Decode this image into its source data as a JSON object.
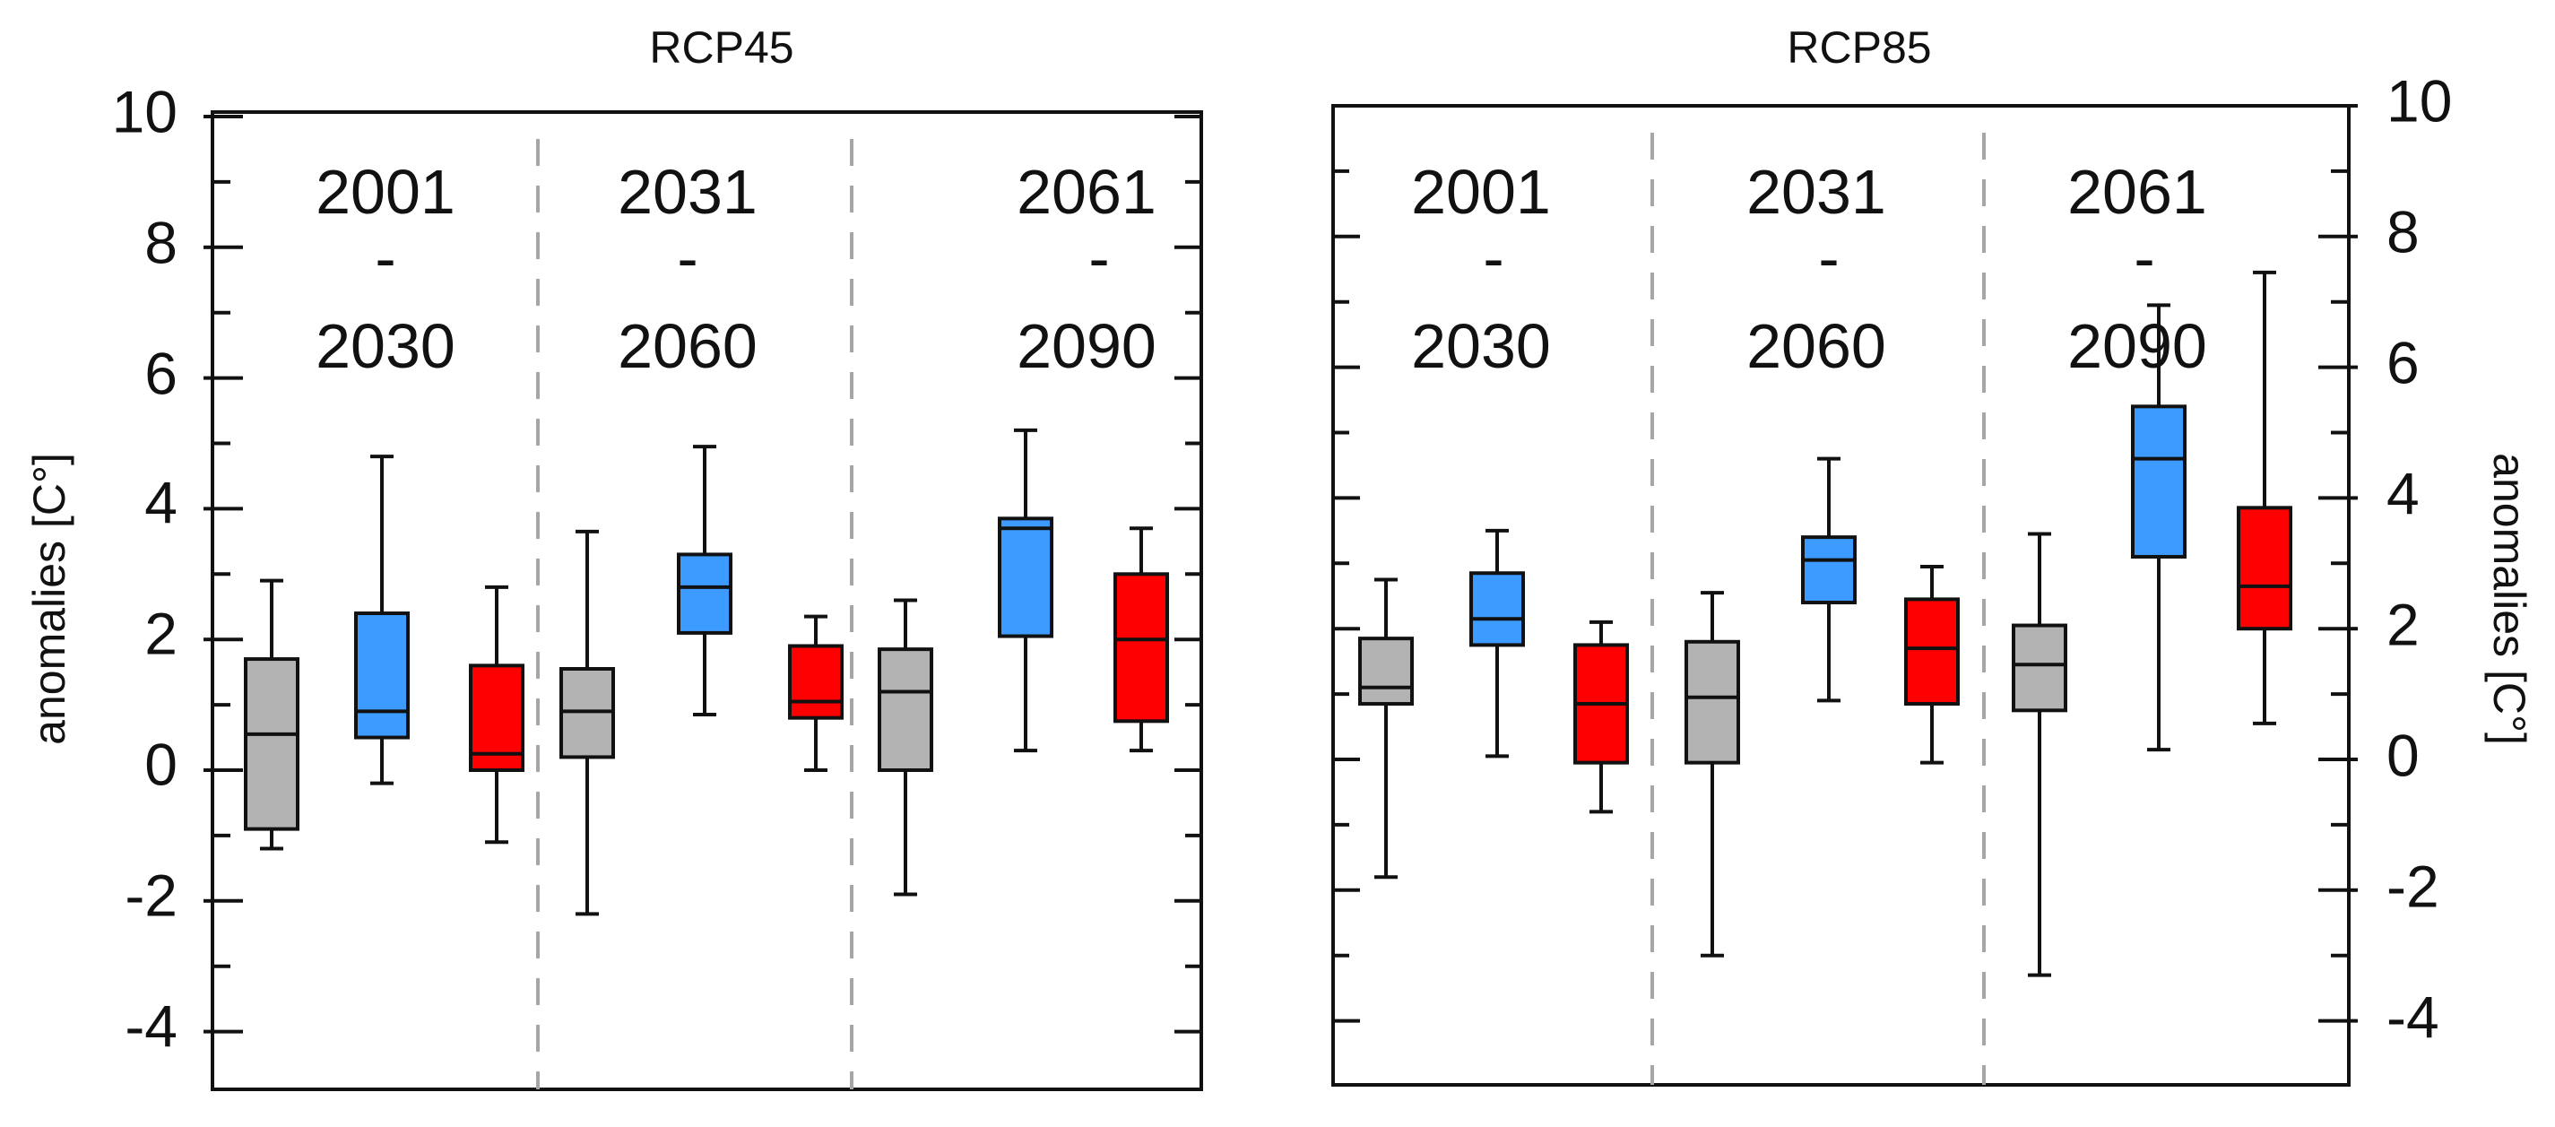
{
  "chart_data": {
    "type": "box",
    "ylabel": "anomalies [C°]",
    "ylim": [
      -5,
      10
    ],
    "yticks": [
      10,
      8,
      6,
      4,
      2,
      0,
      -2,
      -4
    ],
    "ytick_labels": [
      "10",
      "8",
      "6",
      "4",
      "2",
      "0",
      "-2",
      "-4"
    ],
    "colors": {
      "gray": "#b3b3b3",
      "blue": "#3d9bff",
      "red": "#ff0000",
      "divider": "#a6a6a6",
      "ink": "#111111"
    },
    "panels": [
      {
        "title": "RCP45",
        "periods": [
          {
            "start": "2001",
            "sep": "-",
            "end": "2030"
          },
          {
            "start": "2031",
            "sep": "-",
            "end": "2060"
          },
          {
            "start": "2061",
            "sep": "-",
            "end": "2090"
          }
        ],
        "groups": [
          {
            "period": "2001-2030",
            "boxes": [
              {
                "color": "gray",
                "min": -1.2,
                "q1": -0.9,
                "median": 0.55,
                "q3": 1.7,
                "max": 2.9
              },
              {
                "color": "blue",
                "min": -0.2,
                "q1": 0.5,
                "median": 0.9,
                "q3": 2.4,
                "max": 4.8
              },
              {
                "color": "red",
                "min": -1.1,
                "q1": 0.0,
                "median": 0.25,
                "q3": 1.6,
                "max": 2.8
              }
            ]
          },
          {
            "period": "2031-2060",
            "boxes": [
              {
                "color": "gray",
                "min": -2.2,
                "q1": 0.2,
                "median": 0.9,
                "q3": 1.55,
                "max": 3.65
              },
              {
                "color": "blue",
                "min": 0.85,
                "q1": 2.1,
                "median": 2.8,
                "q3": 3.3,
                "max": 4.95
              },
              {
                "color": "red",
                "min": 0.0,
                "q1": 0.8,
                "median": 1.05,
                "q3": 1.9,
                "max": 2.35
              }
            ]
          },
          {
            "period": "2061-2090",
            "boxes": [
              {
                "color": "gray",
                "min": -1.9,
                "q1": 0.0,
                "median": 1.2,
                "q3": 1.85,
                "max": 2.6
              },
              {
                "color": "blue",
                "min": 0.3,
                "q1": 2.05,
                "median": 3.7,
                "q3": 3.85,
                "max": 5.2
              },
              {
                "color": "red",
                "min": 0.3,
                "q1": 0.75,
                "median": 2.0,
                "q3": 3.0,
                "max": 3.7
              }
            ]
          }
        ]
      },
      {
        "title": "RCP85",
        "periods": [
          {
            "start": "2001",
            "sep": "-",
            "end": "2030"
          },
          {
            "start": "2031",
            "sep": "-",
            "end": "2060"
          },
          {
            "start": "2061",
            "sep": "-",
            "end": "2090"
          }
        ],
        "groups": [
          {
            "period": "2001-2030",
            "boxes": [
              {
                "color": "gray",
                "min": -1.8,
                "q1": 0.85,
                "median": 1.1,
                "q3": 1.85,
                "max": 2.75
              },
              {
                "color": "blue",
                "min": 0.05,
                "q1": 1.75,
                "median": 2.15,
                "q3": 2.85,
                "max": 3.5
              },
              {
                "color": "red",
                "min": -0.8,
                "q1": -0.05,
                "median": 0.85,
                "q3": 1.75,
                "max": 2.1
              }
            ]
          },
          {
            "period": "2031-2060",
            "boxes": [
              {
                "color": "gray",
                "min": -3.0,
                "q1": -0.05,
                "median": 0.95,
                "q3": 1.8,
                "max": 2.55
              },
              {
                "color": "blue",
                "min": 0.9,
                "q1": 2.4,
                "median": 3.05,
                "q3": 3.4,
                "max": 4.6
              },
              {
                "color": "red",
                "min": -0.05,
                "q1": 0.85,
                "median": 1.7,
                "q3": 2.45,
                "max": 2.95
              }
            ]
          },
          {
            "period": "2061-2090",
            "boxes": [
              {
                "color": "gray",
                "min": -3.3,
                "q1": 0.75,
                "median": 1.45,
                "q3": 2.05,
                "max": 3.45
              },
              {
                "color": "blue",
                "min": 0.15,
                "q1": 3.1,
                "median": 4.6,
                "q3": 5.4,
                "max": 6.95
              },
              {
                "color": "red",
                "min": 0.55,
                "q1": 2.0,
                "median": 2.65,
                "q3": 3.85,
                "max": 7.45
              }
            ]
          }
        ]
      }
    ]
  }
}
